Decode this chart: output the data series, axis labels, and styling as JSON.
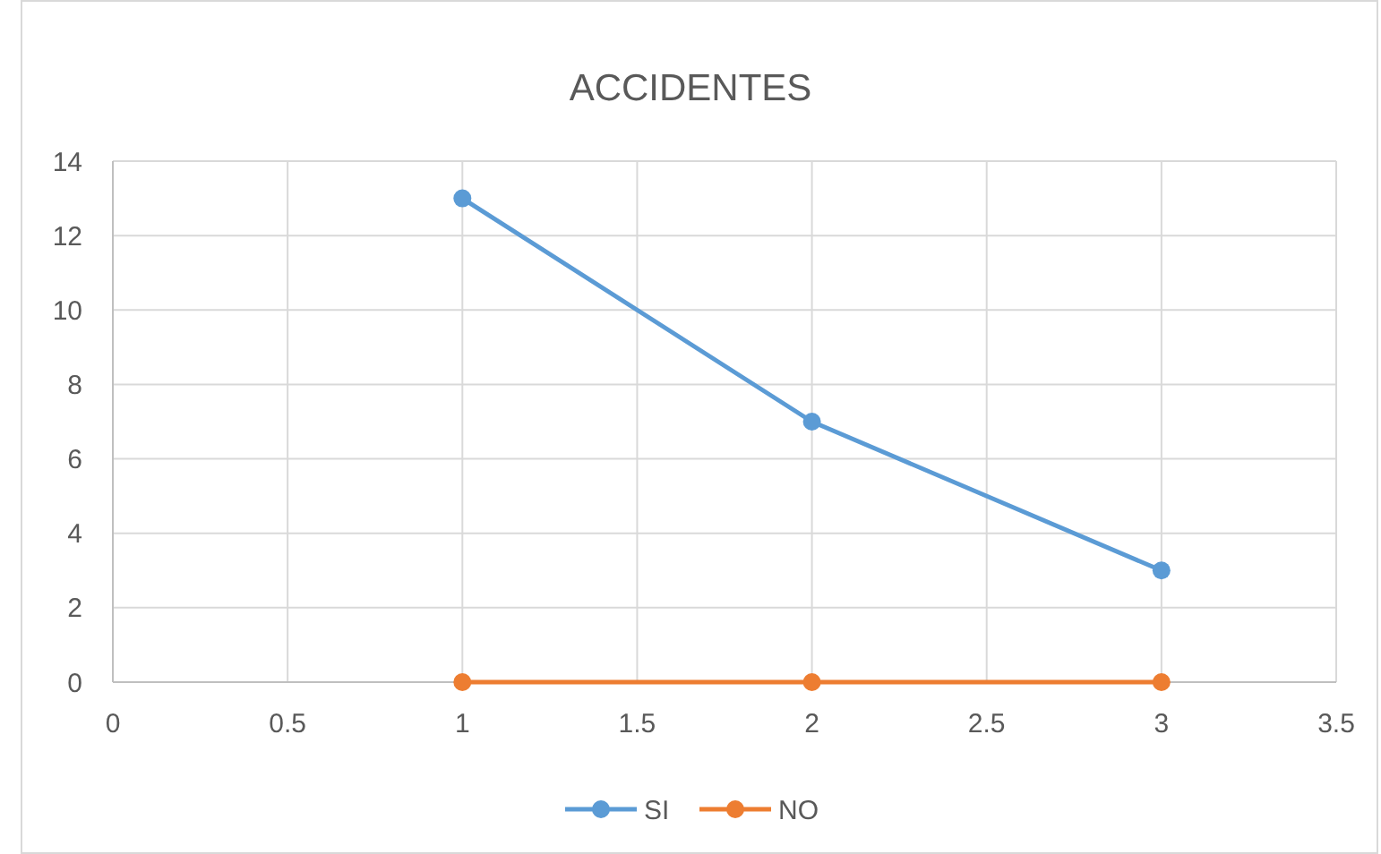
{
  "chart_data": {
    "type": "line",
    "title": "ACCIDENTES",
    "x": [
      1,
      2,
      3
    ],
    "series": [
      {
        "name": "SI",
        "color": "#5b9bd5",
        "values": [
          13,
          7,
          3
        ]
      },
      {
        "name": "NO",
        "color": "#ed7d31",
        "values": [
          0,
          0,
          0
        ]
      }
    ],
    "xlim": [
      0,
      3.5
    ],
    "xticks": [
      0,
      0.5,
      1,
      1.5,
      2,
      2.5,
      3,
      3.5
    ],
    "ylim": [
      0,
      14
    ],
    "yticks": [
      0,
      2,
      4,
      6,
      8,
      10,
      12,
      14
    ],
    "grid": true,
    "legend": "bottom",
    "marker": "circle",
    "line_style": "solid"
  }
}
